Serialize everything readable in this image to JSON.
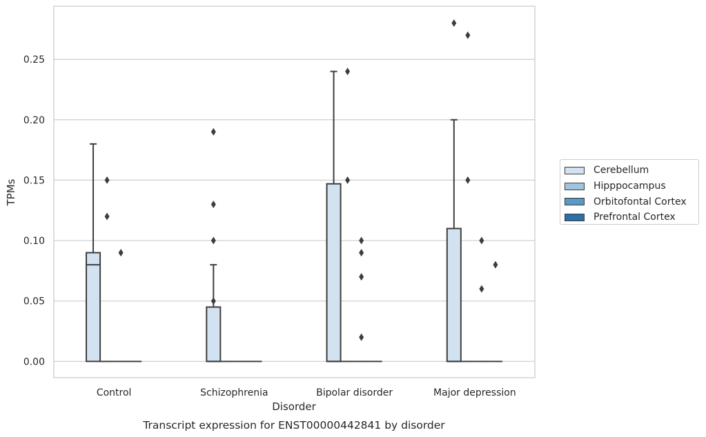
{
  "chart_data": {
    "type": "box",
    "title": "Transcript expression for ENST00000442841 by disorder",
    "xlabel": "Disorder",
    "ylabel": "TPMs",
    "categories": [
      "Control",
      "Schizophrenia",
      "Bipolar disorder",
      "Major depression"
    ],
    "ylim": [
      -0.0135,
      0.294
    ],
    "yticks": [
      "0.00",
      "0.05",
      "0.10",
      "0.15",
      "0.20",
      "0.25"
    ],
    "ytick_values": [
      0,
      0.05,
      0.1,
      0.15,
      0.2,
      0.25
    ],
    "grid": "horizontal",
    "legend_position": "right",
    "series": [
      {
        "name": "Cerebellum",
        "color": "#d2e2f1",
        "boxes": [
          {
            "q1": 0,
            "median": 0.08,
            "q3": 0.09,
            "whisker_low": 0,
            "whisker_high": 0.18,
            "outliers": []
          },
          {
            "q1": 0,
            "median": 0,
            "q3": 0.045,
            "whisker_low": 0,
            "whisker_high": 0.08,
            "outliers": [
              0.19,
              0.13,
              0.1,
              0.05
            ]
          },
          {
            "q1": 0,
            "median": 0,
            "q3": 0.147,
            "whisker_low": 0,
            "whisker_high": 0.24,
            "outliers": []
          },
          {
            "q1": 0,
            "median": 0,
            "q3": 0.11,
            "whisker_low": 0,
            "whisker_high": 0.2,
            "outliers": [
              0.28
            ]
          }
        ]
      },
      {
        "name": "Hipppocampus",
        "color": "#9fc4de",
        "boxes": [
          {
            "q1": 0,
            "median": 0,
            "q3": 0,
            "whisker_low": 0,
            "whisker_high": 0,
            "outliers": [
              0.15,
              0.12
            ]
          },
          {
            "q1": 0,
            "median": 0,
            "q3": 0,
            "whisker_low": 0,
            "whisker_high": 0,
            "outliers": []
          },
          {
            "q1": 0,
            "median": 0,
            "q3": 0,
            "whisker_low": 0,
            "whisker_high": 0,
            "outliers": [
              0.24,
              0.15
            ]
          },
          {
            "q1": 0,
            "median": 0,
            "q3": 0,
            "whisker_low": 0,
            "whisker_high": 0,
            "outliers": [
              0.27,
              0.15
            ]
          }
        ]
      },
      {
        "name": "Orbitofontal Cortex",
        "color": "#5899c5",
        "boxes": [
          {
            "q1": 0,
            "median": 0,
            "q3": 0,
            "whisker_low": 0,
            "whisker_high": 0,
            "outliers": [
              0.09
            ]
          },
          {
            "q1": 0,
            "median": 0,
            "q3": 0,
            "whisker_low": 0,
            "whisker_high": 0,
            "outliers": []
          },
          {
            "q1": 0,
            "median": 0,
            "q3": 0,
            "whisker_low": 0,
            "whisker_high": 0,
            "outliers": [
              0.1,
              0.09,
              0.07,
              0.02
            ]
          },
          {
            "q1": 0,
            "median": 0,
            "q3": 0,
            "whisker_low": 0,
            "whisker_high": 0,
            "outliers": [
              0.1,
              0.06
            ]
          }
        ]
      },
      {
        "name": "Prefrontal Cortex",
        "color": "#2e6fa8",
        "boxes": [
          {
            "q1": 0,
            "median": 0,
            "q3": 0,
            "whisker_low": 0,
            "whisker_high": 0,
            "outliers": []
          },
          {
            "q1": 0,
            "median": 0,
            "q3": 0,
            "whisker_low": 0,
            "whisker_high": 0,
            "outliers": []
          },
          {
            "q1": 0,
            "median": 0,
            "q3": 0,
            "whisker_low": 0,
            "whisker_high": 0,
            "outliers": []
          },
          {
            "q1": 0,
            "median": 0,
            "q3": 0,
            "whisker_low": 0,
            "whisker_high": 0,
            "outliers": [
              0.08
            ]
          }
        ]
      }
    ]
  }
}
